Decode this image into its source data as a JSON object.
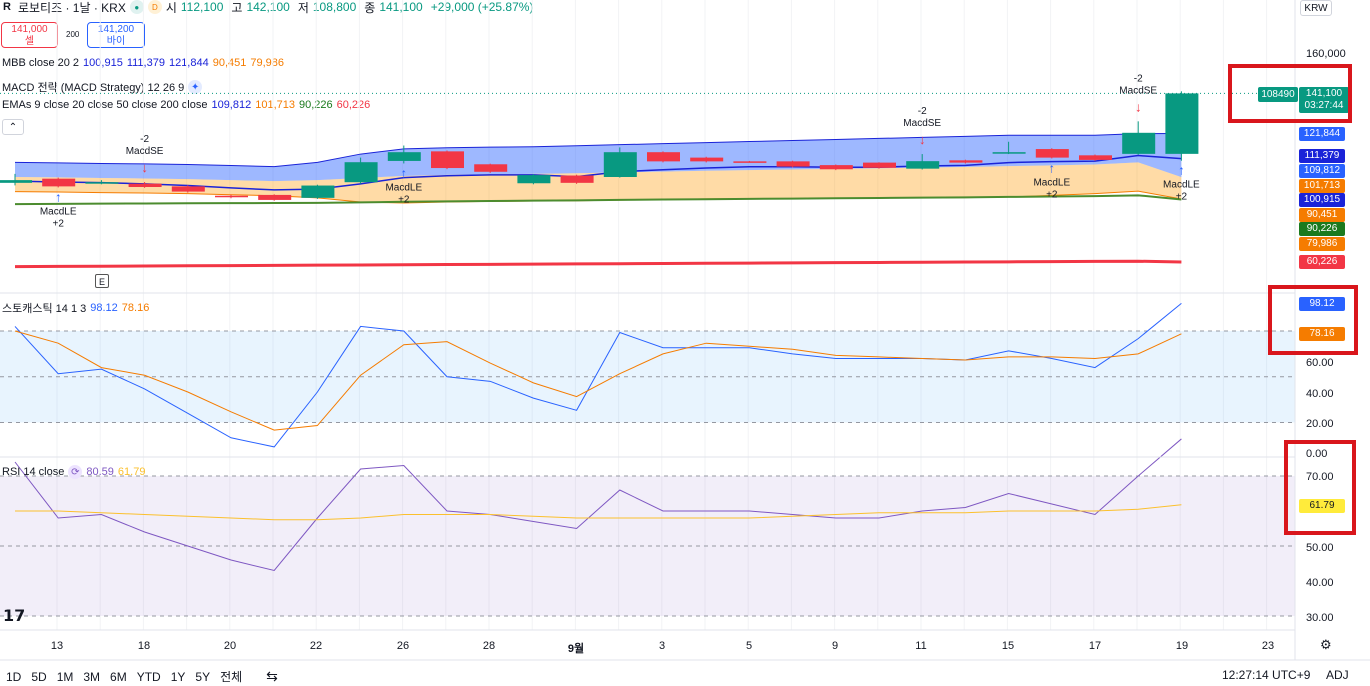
{
  "header": {
    "symbol": "로보티즈 · 1날 · KRX",
    "status_letter": "D",
    "open_label": "시",
    "open": "112,100",
    "high_label": "고",
    "high": "142,100",
    "low_label": "저",
    "low": "108,800",
    "close_label": "종",
    "close": "141,100",
    "change": "+29,000 (+25.87%)",
    "currency": "KRW"
  },
  "trade": {
    "sell_price": "141,000",
    "sell_label": "셀",
    "spread": "200",
    "buy_price": "141,200",
    "buy_label": "바이"
  },
  "legends": {
    "mbb": {
      "name": "MBB close 20 2",
      "v1": "100,915",
      "v2": "111,379",
      "v3": "121,844",
      "v4": "90,451",
      "v5": "79,986"
    },
    "macd": {
      "name": "MACD 전략 (MACD Strategy) 12 26 9"
    },
    "emas": {
      "name": "EMAs 9 close 20 close 50 close 200 close",
      "v1": "109,812",
      "v2": "101,713",
      "v3": "90,226",
      "v4": "60,226"
    },
    "stoch": {
      "name": "스토캐스틱 14 1 3",
      "k": "98.12",
      "d": "78.16"
    },
    "rsi": {
      "name": "RSI 14 close",
      "v1": "80.59",
      "v2": "61.79"
    }
  },
  "price_scale": {
    "top_tick": "160,000",
    "current_id": "108490",
    "current_price": "141,100",
    "countdown": "03:27:44",
    "badges": [
      {
        "label": "121,844",
        "color": "#2962ff"
      },
      {
        "label": "111,379",
        "color": "#1a23d8"
      },
      {
        "label": "109,812",
        "color": "#2962ff"
      },
      {
        "label": "101,713",
        "color": "#f57c00"
      },
      {
        "label": "100,915",
        "color": "#1a23d8"
      },
      {
        "label": "90,451",
        "color": "#f57c00"
      },
      {
        "label": "90,226",
        "color": "#1b7a1e"
      },
      {
        "label": "79,986",
        "color": "#f57c00"
      },
      {
        "label": "60,226",
        "color": "#f23645"
      }
    ]
  },
  "stoch_scale": {
    "k_badge": "98.12",
    "d_badge": "78.16",
    "ticks": [
      "60.00",
      "40.00",
      "20.00"
    ]
  },
  "rsi_scale": {
    "ticks": [
      "0.00",
      "70.00",
      "50.00",
      "40.00",
      "30.00"
    ],
    "badge": "61.79"
  },
  "signals": {
    "long_label": "MacdLE",
    "long_qty": "+2",
    "short_label": "MacdSE",
    "short_qty": "-2"
  },
  "earnings_flag": "E",
  "xaxis": [
    "13",
    "18",
    "20",
    "22",
    "26",
    "28",
    "9월",
    "3",
    "5",
    "9",
    "11",
    "15",
    "17",
    "19",
    "23"
  ],
  "bottom": {
    "ranges": [
      "1D",
      "5D",
      "1M",
      "3M",
      "6M",
      "YTD",
      "1Y",
      "5Y",
      "전체"
    ],
    "time": "12:27:14 UTC+9",
    "adj": "ADJ"
  },
  "colors": {
    "up": "#089981",
    "down": "#f23645",
    "accent": "#2962ff",
    "highlight": "#d9161c"
  },
  "chart_data": {
    "type": "candlestick",
    "candles": [
      {
        "o": 98200,
        "c": 99500,
        "h": 102500,
        "l": 97000
      },
      {
        "o": 100200,
        "c": 96500,
        "h": 100700,
        "l": 96000
      },
      {
        "o": 97800,
        "c": 98500,
        "h": 99500,
        "l": 97500
      },
      {
        "o": 97800,
        "c": 96200,
        "h": 98600,
        "l": 95800
      },
      {
        "o": 96500,
        "c": 94000,
        "h": 97000,
        "l": 93500
      },
      {
        "o": 92000,
        "c": 91400,
        "h": 92500,
        "l": 90800
      },
      {
        "o": 92400,
        "c": 90000,
        "h": 92700,
        "l": 89600
      },
      {
        "o": 91000,
        "c": 96900,
        "h": 97300,
        "l": 90500
      },
      {
        "o": 98500,
        "c": 108100,
        "h": 110300,
        "l": 97800
      },
      {
        "o": 108700,
        "c": 112900,
        "h": 116100,
        "l": 107500
      },
      {
        "o": 113300,
        "c": 105300,
        "h": 113700,
        "l": 104800
      },
      {
        "o": 107100,
        "c": 103500,
        "h": 107400,
        "l": 103000
      },
      {
        "o": 98000,
        "c": 101900,
        "h": 102300,
        "l": 97500
      },
      {
        "o": 101700,
        "c": 98200,
        "h": 102100,
        "l": 97700
      },
      {
        "o": 101000,
        "c": 112900,
        "h": 115200,
        "l": 100700
      },
      {
        "o": 112900,
        "c": 108500,
        "h": 113300,
        "l": 108000
      },
      {
        "o": 110300,
        "c": 108500,
        "h": 110700,
        "l": 108000
      },
      {
        "o": 108500,
        "c": 108100,
        "h": 108700,
        "l": 107900
      },
      {
        "o": 108500,
        "c": 106000,
        "h": 108800,
        "l": 105600
      },
      {
        "o": 106700,
        "c": 104700,
        "h": 107000,
        "l": 104300
      },
      {
        "o": 107900,
        "c": 105400,
        "h": 108100,
        "l": 105000
      },
      {
        "o": 105000,
        "c": 108600,
        "h": 112000,
        "l": 104600
      },
      {
        "o": 109000,
        "c": 107900,
        "h": 109300,
        "l": 107500
      },
      {
        "o": 112500,
        "c": 112900,
        "h": 117900,
        "l": 112000
      },
      {
        "o": 114400,
        "c": 110300,
        "h": 114800,
        "l": 109900
      },
      {
        "o": 111400,
        "c": 109200,
        "h": 111800,
        "l": 108800
      },
      {
        "o": 112100,
        "c": 122200,
        "h": 127700,
        "l": 111700
      },
      {
        "o": 112100,
        "c": 141100,
        "h": 142100,
        "l": 108800
      }
    ],
    "mbb": {
      "upper": [
        108000,
        107800,
        107500,
        107300,
        107000,
        106500,
        106000,
        108000,
        112000,
        114500,
        115000,
        115300,
        115500,
        116000,
        116500,
        117000,
        117500,
        118000,
        118500,
        119000,
        119500,
        120000,
        120500,
        121000,
        121000,
        121000,
        121800,
        121844
      ],
      "middle": [
        101000,
        100800,
        100500,
        100300,
        100000,
        99500,
        99000,
        99500,
        100500,
        101500,
        102000,
        102300,
        102500,
        102800,
        103200,
        103600,
        104000,
        104300,
        104600,
        104900,
        105200,
        105500,
        105800,
        106200,
        106600,
        107000,
        108000,
        100915
      ],
      "lower": [
        94000,
        93800,
        93500,
        93300,
        93000,
        92500,
        92000,
        91000,
        89000,
        88500,
        89000,
        89300,
        89500,
        89600,
        89900,
        90200,
        90500,
        90600,
        90700,
        90800,
        90900,
        91000,
        91100,
        91400,
        92200,
        93000,
        94200,
        90451
      ]
    },
    "ema9": [
      99000,
      98600,
      98300,
      97700,
      96900,
      95800,
      94800,
      95200,
      97700,
      100700,
      101600,
      102000,
      102000,
      101200,
      103500,
      104500,
      105300,
      105900,
      105900,
      105700,
      105700,
      106300,
      106600,
      107900,
      108400,
      108600,
      111300,
      109812
    ],
    "ema50": [
      88000,
      88100,
      88200,
      88300,
      88400,
      88450,
      88500,
      88600,
      88800,
      89100,
      89300,
      89500,
      89650,
      89800,
      90000,
      90200,
      90350,
      90500,
      90650,
      90800,
      90950,
      91100,
      91250,
      91450,
      91650,
      91800,
      92200,
      90226
    ],
    "ema200": [
      58000,
      58100,
      58200,
      58300,
      58400,
      58500,
      58600,
      58700,
      58800,
      58900,
      59000,
      59100,
      59200,
      59300,
      59400,
      59500,
      59600,
      59700,
      59800,
      59900,
      60000,
      60100,
      60200,
      60300,
      60400,
      60500,
      60600,
      60226
    ],
    "stoch_k": [
      83,
      52,
      55,
      42,
      26,
      10,
      4,
      40,
      83,
      80,
      50,
      47,
      36,
      28,
      79,
      69,
      69,
      69,
      65,
      62,
      62,
      62,
      61,
      67,
      62,
      56,
      75,
      98.12
    ],
    "stoch_d": [
      80,
      72,
      56,
      51,
      40,
      27,
      15,
      18,
      51,
      71,
      73,
      59,
      46,
      37,
      52,
      65,
      72,
      70,
      68,
      64,
      63,
      62,
      61,
      63,
      63,
      62,
      65,
      78.16
    ],
    "rsi": [
      74,
      58,
      59,
      54,
      50,
      46,
      43,
      58,
      72,
      73,
      60,
      59,
      57,
      55,
      66,
      60,
      60,
      60,
      59,
      58,
      58,
      60,
      61,
      65,
      62,
      59,
      70,
      80.59
    ],
    "rsi_ma": [
      60,
      60,
      59.5,
      59,
      58.5,
      58,
      57.5,
      57.5,
      58,
      59,
      59,
      59,
      58.5,
      58,
      58,
      58,
      58,
      58,
      58.5,
      59,
      59.5,
      59.5,
      59.5,
      60,
      60,
      60,
      60.5,
      61.79
    ],
    "long_signals": [
      1,
      9,
      24,
      27
    ],
    "short_signals": [
      3,
      21,
      26
    ]
  }
}
